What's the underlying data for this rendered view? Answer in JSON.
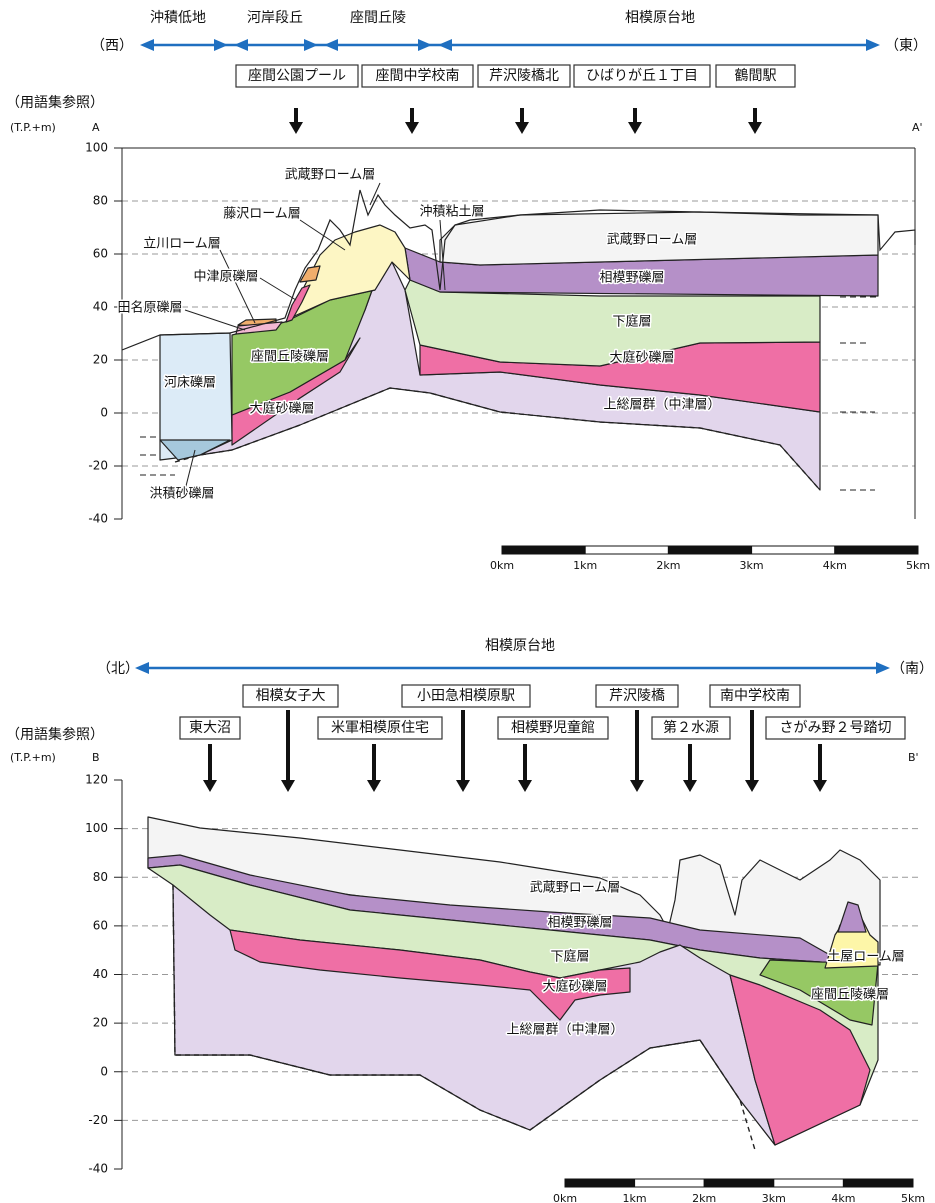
{
  "section_a": {
    "regions": [
      "沖積低地",
      "河岸段丘",
      "座間丘陵",
      "相模原台地"
    ],
    "west": "（西）",
    "east": "（東）",
    "glossary": "（用語集参照）",
    "places": [
      "座間公園プール",
      "座間中学校南",
      "芹沢陵橋北",
      "ひばりが丘１丁目",
      "鶴間駅"
    ],
    "axis_unit": "(T.P.+m)",
    "start": "A",
    "end": "A'",
    "yticks": [
      "100",
      "80",
      "60",
      "40",
      "20",
      "0",
      "-20",
      "-40"
    ],
    "layers": [
      "武蔵野ローム層",
      "藤沢ローム層",
      "立川ローム層",
      "中津原礫層",
      "田名原礫層",
      "河床礫層",
      "座間丘陵礫層",
      "大庭砂礫層",
      "洪積砂礫層",
      "沖積粘土層",
      "武蔵野ローム層",
      "相模野礫層",
      "下庭層",
      "大庭砂礫層",
      "上総層群（中津層）"
    ],
    "scale": [
      "0km",
      "1km",
      "2km",
      "3km",
      "4km",
      "5km"
    ]
  },
  "section_b": {
    "region": "相模原台地",
    "north": "（北）",
    "south": "（南）",
    "glossary": "（用語集参照）",
    "places": [
      "相模女子大",
      "小田急相模原駅",
      "芹沢陵橋",
      "南中学校南"
    ],
    "places_lower": [
      "東大沼",
      "米軍相模原住宅",
      "相模野児童館",
      "第２水源",
      "さがみ野２号踏切"
    ],
    "axis_unit": "(T.P.+m)",
    "start": "B",
    "end": "B'",
    "yticks": [
      "120",
      "100",
      "80",
      "60",
      "40",
      "20",
      "0",
      "-20",
      "-40"
    ],
    "layers": [
      "武蔵野ローム層",
      "相模野礫層",
      "下庭層",
      "大庭砂礫層",
      "上総層群（中津層）",
      "土屋ローム層",
      "座間丘陵礫層"
    ],
    "scale": [
      "0km",
      "1km",
      "2km",
      "3km",
      "4km",
      "5km"
    ]
  }
}
